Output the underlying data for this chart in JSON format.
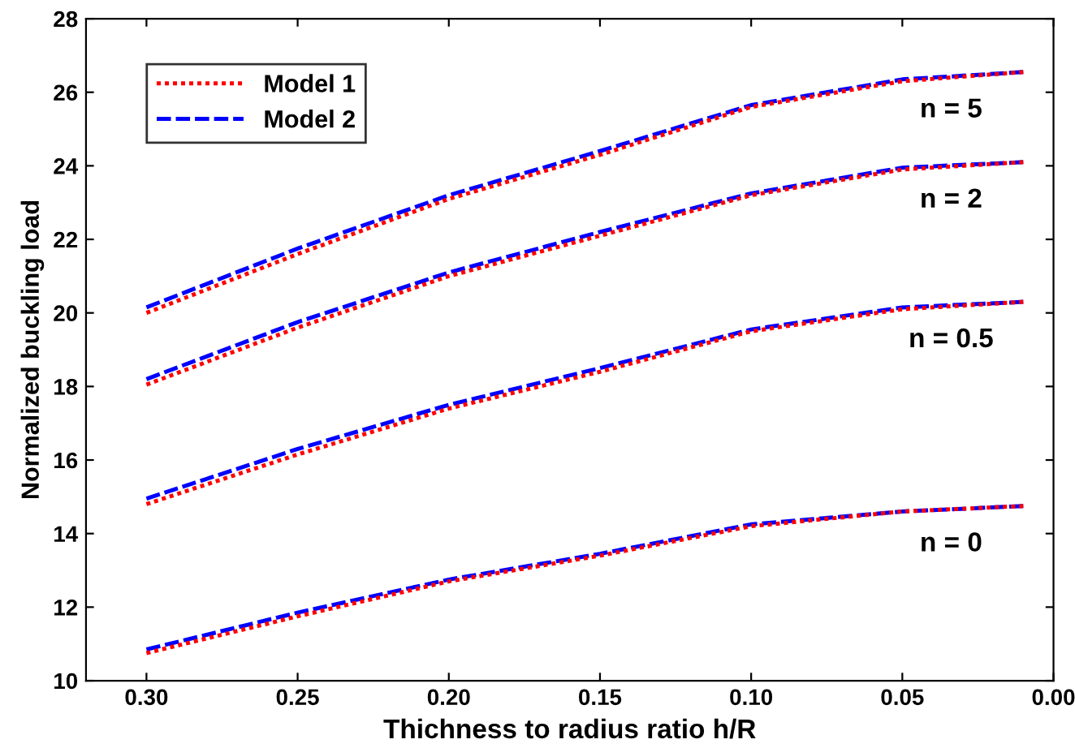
{
  "chart_data": {
    "type": "line",
    "xlabel": "Thichness to radius ratio h/R",
    "ylabel": "Normalized buckling load",
    "x": [
      0.3,
      0.25,
      0.2,
      0.15,
      0.1,
      0.05,
      0.01
    ],
    "series": [
      {
        "name": "Model 1",
        "color": "#ff0000",
        "line_style": "dotted",
        "values": [
          20.0,
          21.6,
          23.1,
          24.3,
          25.6,
          26.3,
          26.55
        ]
      },
      {
        "name": "Model 2",
        "color": "#0000ff",
        "line_style": "dashed",
        "values": [
          20.15,
          21.75,
          23.2,
          24.4,
          25.65,
          26.35,
          26.55
        ]
      },
      {
        "color": "#ff0000",
        "line_style": "dotted",
        "values": [
          18.05,
          19.6,
          21.0,
          22.1,
          23.2,
          23.9,
          24.1
        ]
      },
      {
        "color": "#0000ff",
        "line_style": "dashed",
        "values": [
          18.2,
          19.75,
          21.1,
          22.2,
          23.25,
          23.95,
          24.1
        ]
      },
      {
        "color": "#ff0000",
        "line_style": "dotted",
        "values": [
          14.8,
          16.15,
          17.4,
          18.4,
          19.5,
          20.1,
          20.3
        ]
      },
      {
        "color": "#0000ff",
        "line_style": "dashed",
        "values": [
          14.95,
          16.3,
          17.5,
          18.5,
          19.55,
          20.15,
          20.3
        ]
      },
      {
        "color": "#ff0000",
        "line_style": "dotted",
        "values": [
          10.75,
          11.75,
          12.7,
          13.4,
          14.2,
          14.6,
          14.75
        ]
      },
      {
        "color": "#0000ff",
        "line_style": "dashed",
        "values": [
          10.85,
          11.85,
          12.75,
          13.45,
          14.25,
          14.6,
          14.75
        ]
      }
    ],
    "annotations": [
      "n = 5",
      "n = 2",
      "n = 0.5",
      "n = 0"
    ],
    "xlim": [
      0.32,
      0.0
    ],
    "xticks": [
      {
        "value": 0.3,
        "label": "0.30"
      },
      0.25,
      {
        "value": 0.2,
        "label": "0.20"
      },
      0.15,
      {
        "value": 0.1,
        "label": "0.10"
      },
      0.05,
      {
        "value": 0.0,
        "label": "0.00"
      }
    ],
    "ylim": [
      10,
      28
    ],
    "yticks": [
      10,
      12,
      14,
      16,
      18,
      20,
      22,
      24,
      26,
      28
    ],
    "grid": false,
    "legend": "top left",
    "marker": "none"
  }
}
